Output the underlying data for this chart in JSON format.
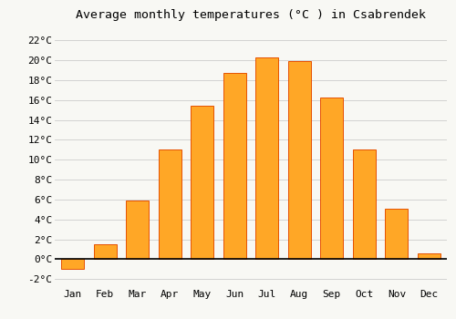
{
  "title": "Average monthly temperatures (°C ) in Csabrendek",
  "months": [
    "Jan",
    "Feb",
    "Mar",
    "Apr",
    "May",
    "Jun",
    "Jul",
    "Aug",
    "Sep",
    "Oct",
    "Nov",
    "Dec"
  ],
  "values": [
    -1.0,
    1.5,
    5.9,
    11.0,
    15.4,
    18.7,
    20.3,
    19.9,
    16.3,
    11.0,
    5.1,
    0.6
  ],
  "bar_color": "#FFA726",
  "bar_edge_color": "#E65100",
  "background_color": "#F8F8F4",
  "grid_color": "#CCCCCC",
  "yticks": [
    -2,
    0,
    2,
    4,
    6,
    8,
    10,
    12,
    14,
    16,
    18,
    20,
    22
  ],
  "ylim": [
    -2.8,
    23.5
  ],
  "title_fontsize": 9.5,
  "tick_fontsize": 8.0,
  "font_family": "monospace"
}
